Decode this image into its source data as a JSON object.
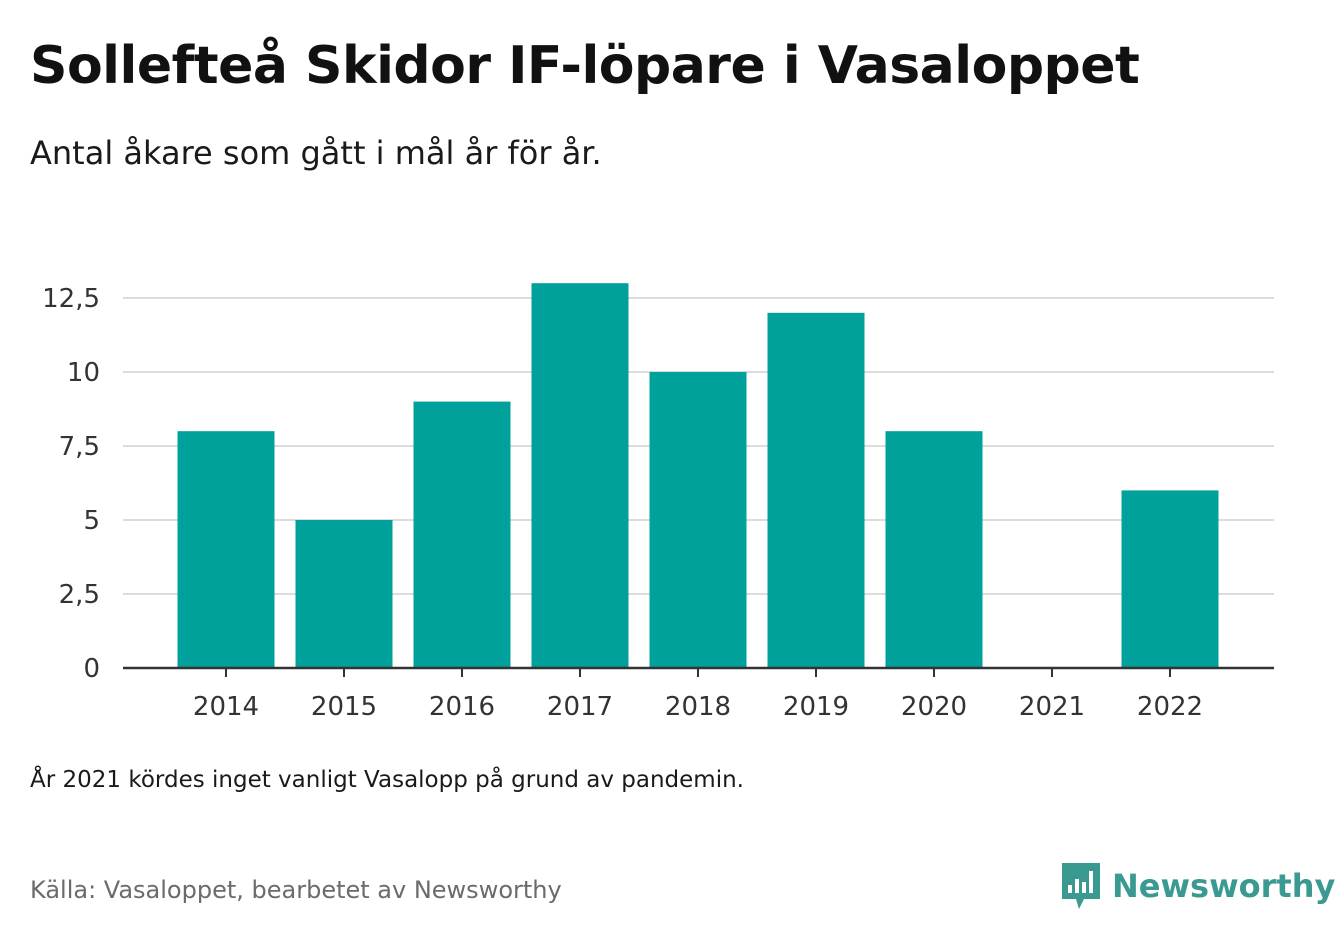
{
  "title": "Sollefteå Skidor IF-löpare i Vasaloppet",
  "subtitle": "Antal åkare som gått i mål år för år.",
  "note": "År 2021 kördes inget vanligt Vasalopp på grund av pandemin.",
  "source": "Källa: Vasaloppet, bearbetet av Newsworthy",
  "brand": {
    "name": "Newsworthy",
    "icon": "newsworthy-logo-icon",
    "color": "#3a9a92"
  },
  "chart_data": {
    "type": "bar",
    "categories": [
      "2014",
      "2015",
      "2016",
      "2017",
      "2018",
      "2019",
      "2020",
      "2021",
      "2022"
    ],
    "values": [
      8,
      5,
      9,
      13,
      10,
      12,
      8,
      null,
      6
    ],
    "ylim": [
      0,
      12.5
    ],
    "y_ticks": [
      0,
      2.5,
      5,
      7.5,
      10,
      12.5
    ],
    "y_tick_labels": [
      "0",
      "2,5",
      "5",
      "7,5",
      "10",
      "12,5"
    ],
    "xlabel": "",
    "ylabel": "",
    "grid": true,
    "bar_color": "#00a19a",
    "grid_color": "#dcdcdc",
    "axis_color": "#333333"
  }
}
